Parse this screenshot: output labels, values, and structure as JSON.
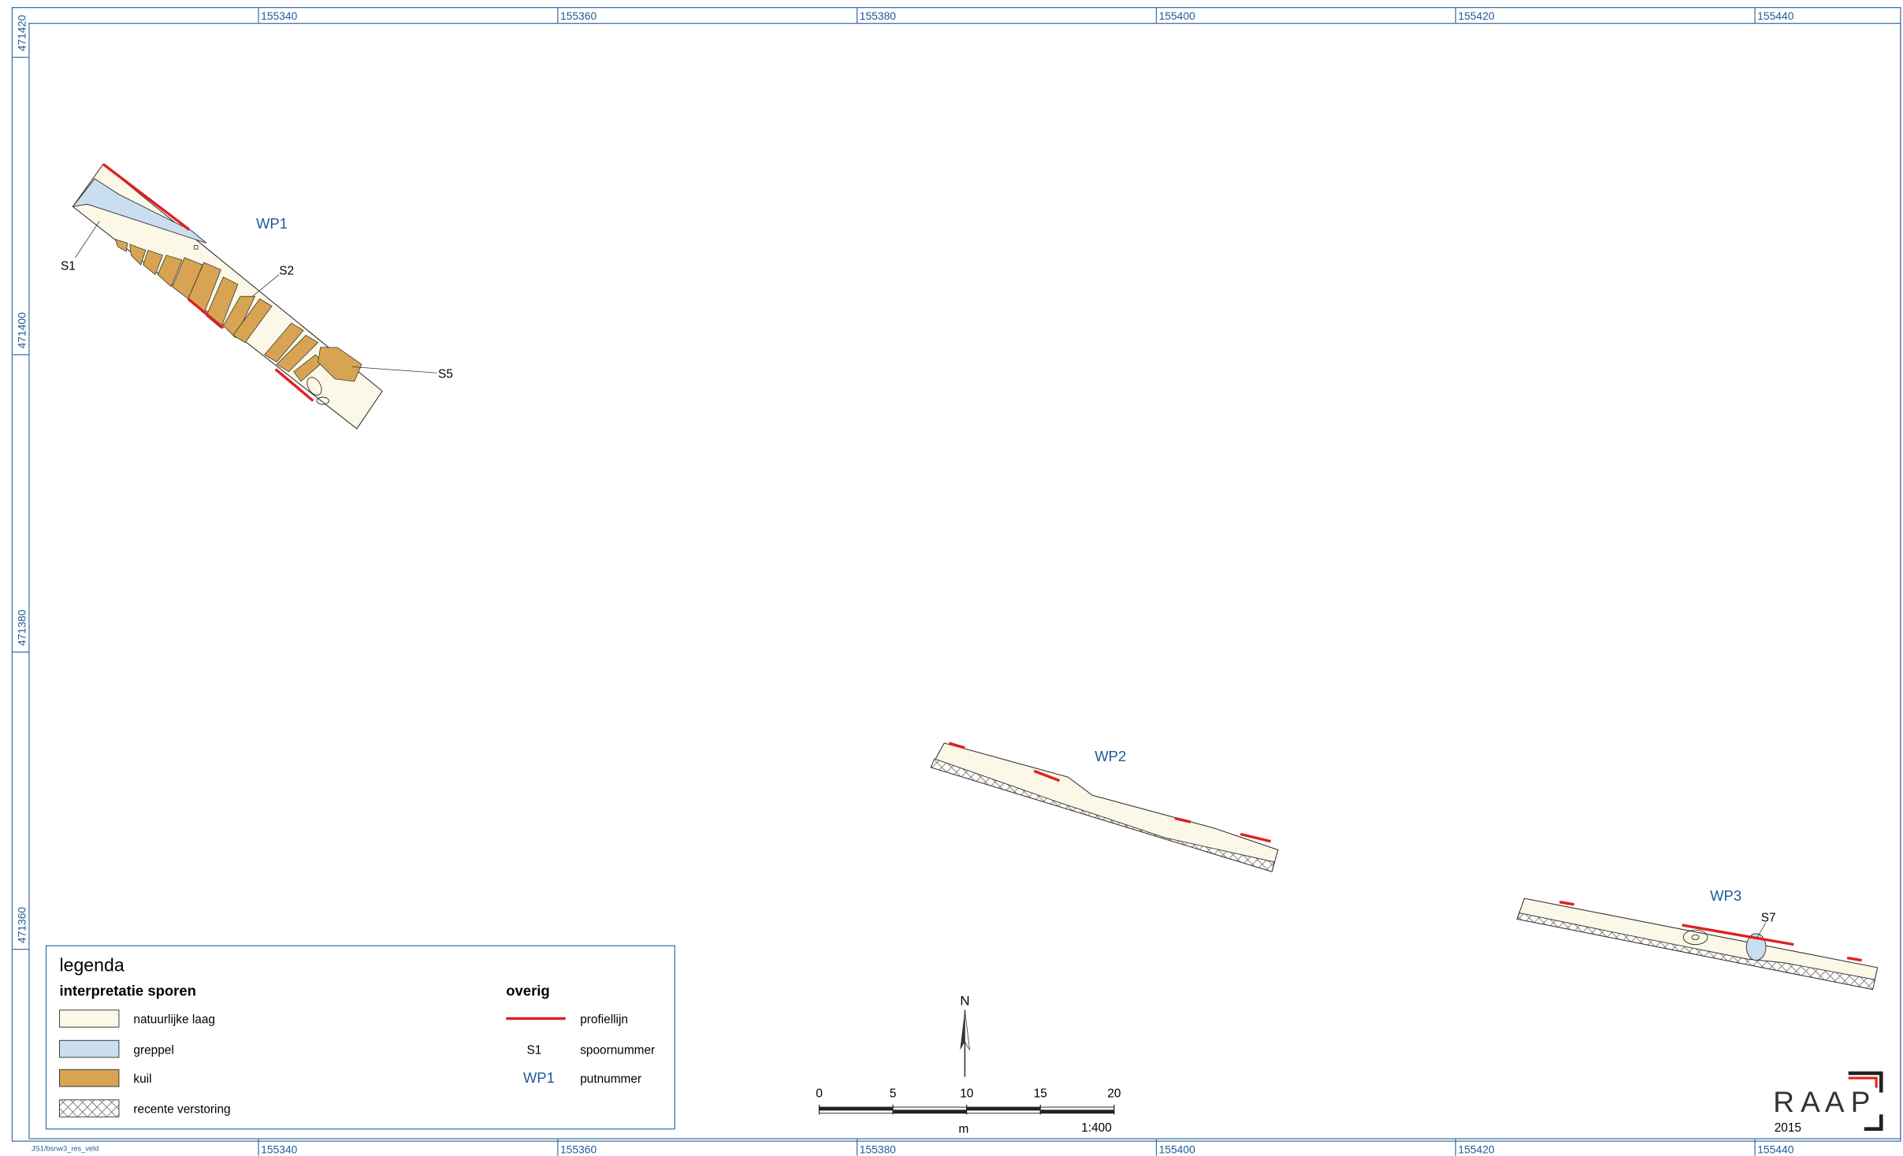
{
  "frame": {
    "x_labels": [
      155340,
      155360,
      155380,
      155400,
      155420,
      155440
    ],
    "y_labels": [
      471420,
      471400,
      471380,
      471360
    ],
    "file_id": "JS1/bsnw3_res_veld"
  },
  "pits": [
    {
      "label": "WP1",
      "features": [
        "S1",
        "S2",
        "S5"
      ]
    },
    {
      "label": "WP2",
      "features": []
    },
    {
      "label": "WP3",
      "features": [
        "S7"
      ]
    }
  ],
  "legend": {
    "title": "legenda",
    "group1": {
      "title": "interpretatie sporen",
      "items": [
        "natuurlijke laag",
        "greppel",
        "kuil",
        "recente verstoring"
      ]
    },
    "group2": {
      "title": "overig",
      "items": [
        {
          "symbol": "",
          "label": "profiellijn"
        },
        {
          "symbol": "S1",
          "label": "spoornummer"
        },
        {
          "symbol": "WP1",
          "label": "putnummer"
        }
      ]
    }
  },
  "scale_bar": {
    "ticks": [
      0,
      5,
      10,
      15,
      20
    ],
    "unit": "m",
    "ratio": "1:400"
  },
  "north": "N",
  "logo": {
    "text": "R A A P",
    "year": "2015"
  }
}
